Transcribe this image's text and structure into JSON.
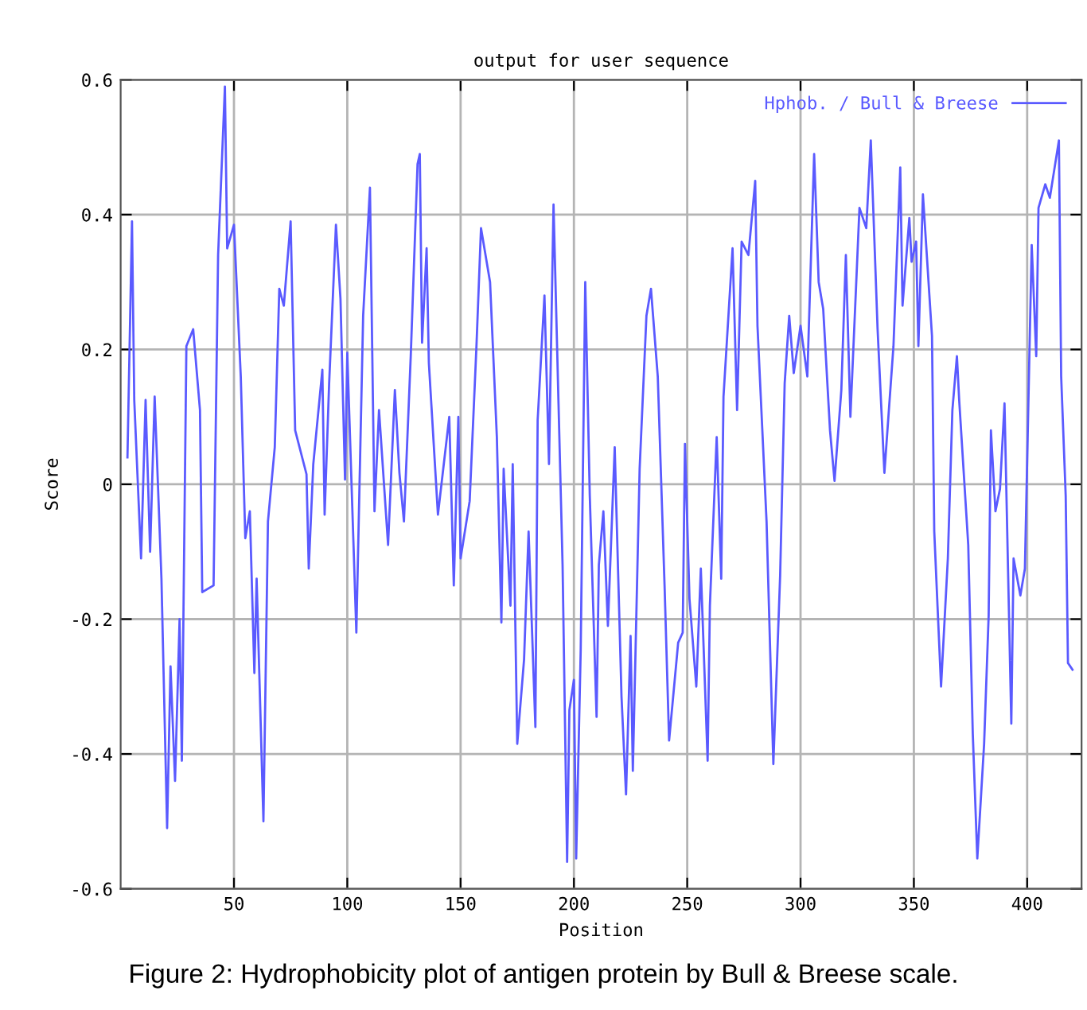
{
  "chart_data": {
    "type": "line",
    "title": "output for user sequence",
    "xlabel": "Position",
    "ylabel": "Score",
    "annotations": [
      "Figure 2: Hydrophobicity plot of antigen protein by Bull & Breese scale."
    ],
    "xlim": [
      0,
      424
    ],
    "xticks": [
      50,
      100,
      150,
      200,
      250,
      300,
      350,
      400
    ],
    "ylim": [
      -0.6,
      0.6
    ],
    "yticks": [
      -0.6,
      -0.4,
      -0.2,
      0,
      0.2,
      0.4,
      0.6
    ],
    "grid": true,
    "legend": "top right",
    "marker": "none",
    "line_style": "solid",
    "series": [
      {
        "name": "Hphob. / Bull & Breese",
        "color": "#5a5aff",
        "x": [
          3,
          5,
          6,
          9,
          11,
          13,
          15,
          18,
          20.5,
          22,
          24,
          26,
          27,
          29,
          32,
          35,
          36,
          41,
          43,
          46,
          47,
          50,
          53,
          55,
          57,
          59,
          60,
          63,
          65,
          68,
          70,
          72,
          75,
          77,
          82,
          83,
          85,
          89,
          90,
          92,
          95,
          97,
          99,
          100,
          104,
          107,
          110,
          112,
          114,
          118,
          121,
          123,
          125,
          128,
          131,
          132,
          133,
          135,
          136,
          140,
          145,
          147,
          149,
          150,
          154,
          157,
          159,
          163,
          166,
          168,
          169,
          172,
          173,
          175,
          178,
          180,
          183,
          184,
          187,
          189,
          191,
          195,
          197,
          198,
          200,
          201,
          203,
          205,
          207,
          210,
          211,
          213,
          215,
          218,
          221,
          223,
          225,
          226,
          229,
          232,
          234,
          237,
          240,
          242,
          246,
          248,
          249,
          251,
          254,
          256,
          259,
          260,
          263,
          265,
          266,
          270,
          272,
          274,
          277,
          280,
          281,
          285,
          288,
          291,
          293,
          295,
          297,
          300,
          303,
          306,
          308,
          310,
          313,
          315,
          318,
          320,
          322,
          326,
          329,
          331,
          334,
          337,
          341,
          344,
          345,
          348,
          349,
          351,
          352,
          354,
          358,
          359,
          362,
          365,
          367,
          369,
          370,
          374,
          376,
          378,
          381,
          383,
          384,
          386,
          388,
          390,
          393,
          394,
          397,
          399,
          402,
          404,
          405,
          408,
          410,
          414,
          415,
          417,
          418,
          420
        ],
        "values": [
          0.04,
          0.39,
          0.125,
          -0.11,
          0.125,
          -0.1,
          0.13,
          -0.14,
          -0.51,
          -0.27,
          -0.44,
          -0.2,
          -0.41,
          0.205,
          0.23,
          0.11,
          -0.16,
          -0.15,
          0.34,
          0.59,
          0.35,
          0.385,
          0.16,
          -0.08,
          -0.04,
          -0.28,
          -0.14,
          -0.5,
          -0.055,
          0.055,
          0.29,
          0.265,
          0.39,
          0.08,
          0.015,
          -0.125,
          0.03,
          0.17,
          -0.045,
          0.15,
          0.385,
          0.275,
          0.007,
          0.195,
          -0.22,
          0.25,
          0.44,
          -0.04,
          0.11,
          -0.09,
          0.14,
          0.017,
          -0.055,
          0.19,
          0.475,
          0.49,
          0.21,
          0.35,
          0.18,
          -0.045,
          0.1,
          -0.15,
          0.1,
          -0.11,
          -0.025,
          0.205,
          0.38,
          0.3,
          0.07,
          -0.205,
          0.023,
          -0.18,
          0.03,
          -0.385,
          -0.26,
          -0.07,
          -0.36,
          0.095,
          0.28,
          0.03,
          0.415,
          -0.12,
          -0.56,
          -0.335,
          -0.29,
          -0.555,
          -0.245,
          0.3,
          -0.017,
          -0.345,
          -0.12,
          -0.04,
          -0.21,
          0.055,
          -0.315,
          -0.46,
          -0.225,
          -0.425,
          0.023,
          0.25,
          0.29,
          0.16,
          -0.15,
          -0.38,
          -0.235,
          -0.22,
          0.06,
          -0.17,
          -0.3,
          -0.125,
          -0.41,
          -0.18,
          0.07,
          -0.14,
          0.13,
          0.35,
          0.11,
          0.36,
          0.34,
          0.45,
          0.235,
          -0.055,
          -0.415,
          -0.135,
          0.15,
          0.25,
          0.165,
          0.235,
          0.16,
          0.49,
          0.3,
          0.26,
          0.08,
          0.005,
          0.14,
          0.34,
          0.1,
          0.41,
          0.38,
          0.51,
          0.23,
          0.017,
          0.205,
          0.47,
          0.265,
          0.395,
          0.33,
          0.36,
          0.205,
          0.43,
          0.22,
          -0.07,
          -0.3,
          -0.11,
          0.11,
          0.19,
          0.125,
          -0.09,
          -0.37,
          -0.555,
          -0.385,
          -0.195,
          0.08,
          -0.04,
          -0.007,
          0.12,
          -0.355,
          -0.11,
          -0.165,
          -0.125,
          0.355,
          0.19,
          0.41,
          0.445,
          0.425,
          0.51,
          0.16,
          -0.017,
          -0.265,
          -0.275
        ]
      }
    ]
  }
}
